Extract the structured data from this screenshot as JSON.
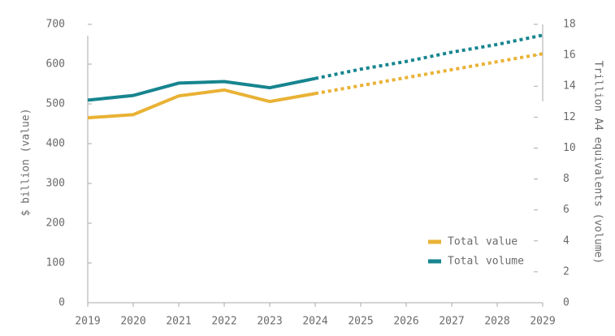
{
  "chart_data": {
    "type": "line",
    "x": [
      2019,
      2020,
      2021,
      2022,
      2023,
      2024,
      2025,
      2026,
      2027,
      2028,
      2029
    ],
    "xlim": [
      2019,
      2029
    ],
    "dashed_after": 2024,
    "ylabel": "$ billion (value)",
    "y2label": "Trillion A4 equivalents (volume)",
    "ylim": [
      0,
      700
    ],
    "yticks": [
      0,
      100,
      200,
      300,
      400,
      500,
      600,
      700
    ],
    "y2lim": [
      0,
      18
    ],
    "y2ticks": [
      0,
      2,
      4,
      6,
      8,
      10,
      12,
      14,
      16,
      18
    ],
    "legend": "lower right",
    "series": [
      {
        "name": "Total value",
        "color": "#e9b235",
        "axis": "y",
        "values": [
          465,
          473,
          520,
          535,
          506,
          526,
          546,
          566,
          586,
          606,
          626
        ]
      },
      {
        "name": "Total volume",
        "color": "#17858f",
        "axis": "y2",
        "values": [
          13.1,
          13.4,
          14.2,
          14.3,
          13.9,
          14.5,
          15.1,
          15.6,
          16.2,
          16.7,
          17.3
        ]
      }
    ]
  }
}
